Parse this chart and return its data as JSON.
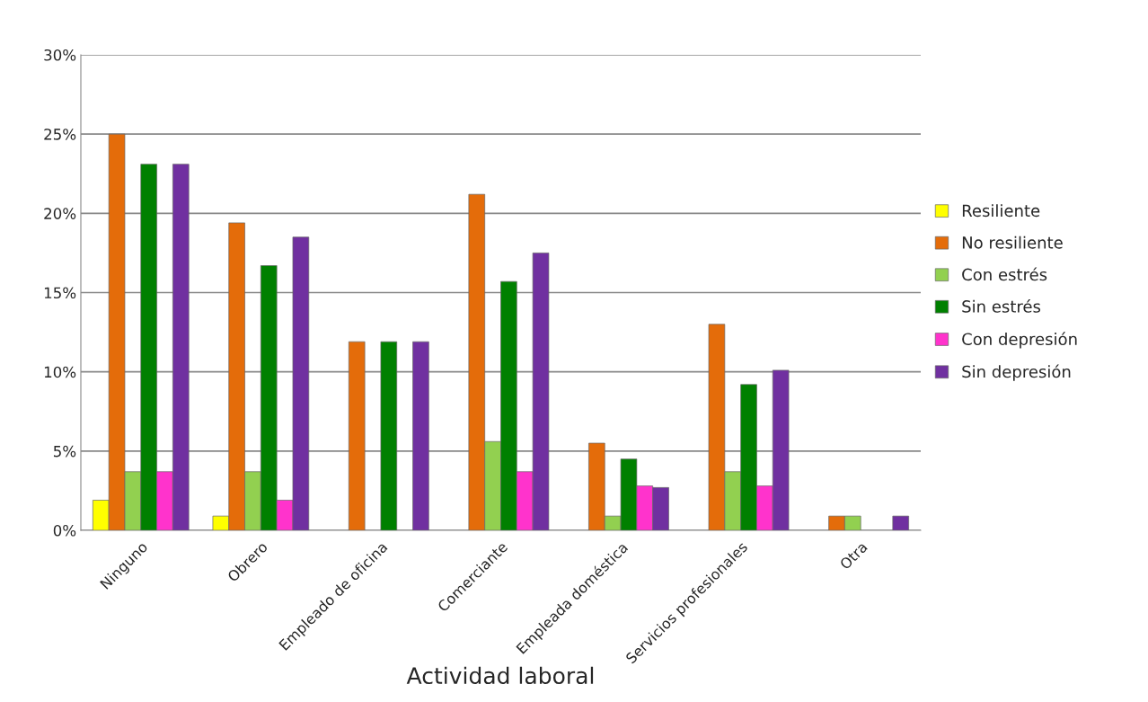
{
  "chart_data": {
    "type": "bar",
    "xlabel": "Actividad laboral",
    "categories": [
      "Ninguno",
      "Obrero",
      "Empleado de oficina",
      "Comerciante",
      "Empleada doméstica",
      "Servicios profesionales",
      "Otra"
    ],
    "series": [
      {
        "name": "Resiliente",
        "color": "#ffff00",
        "values": [
          1.9,
          0.9,
          null,
          null,
          null,
          null,
          null
        ]
      },
      {
        "name": "No resiliente",
        "color": "#e46c0a",
        "values": [
          25.0,
          19.4,
          11.9,
          21.2,
          5.5,
          13.0,
          0.9
        ]
      },
      {
        "name": "Con estrés",
        "color": "#92d050",
        "values": [
          3.7,
          3.7,
          null,
          5.6,
          0.9,
          3.7,
          0.9
        ]
      },
      {
        "name": "Sin estrés",
        "color": "#008000",
        "values": [
          23.1,
          16.7,
          11.9,
          15.7,
          4.5,
          9.2,
          null
        ]
      },
      {
        "name": "Con depresión",
        "color": "#ff33cc",
        "values": [
          3.7,
          1.9,
          null,
          3.7,
          2.8,
          2.8,
          null
        ]
      },
      {
        "name": "Sin depresión",
        "color": "#7030a0",
        "values": [
          23.1,
          18.5,
          11.9,
          17.5,
          2.7,
          10.1,
          0.9
        ]
      }
    ],
    "ylim": [
      0,
      30
    ],
    "yticks": [
      {
        "value": 0,
        "label": "0%"
      },
      {
        "value": 5,
        "label": "5%"
      },
      {
        "value": 10,
        "label": "10%"
      },
      {
        "value": 15,
        "label": "15%"
      },
      {
        "value": 20,
        "label": "20%"
      },
      {
        "value": 25,
        "label": "25%"
      },
      {
        "value": 30,
        "label": "30%"
      }
    ],
    "grid": "y",
    "legend": "right"
  }
}
